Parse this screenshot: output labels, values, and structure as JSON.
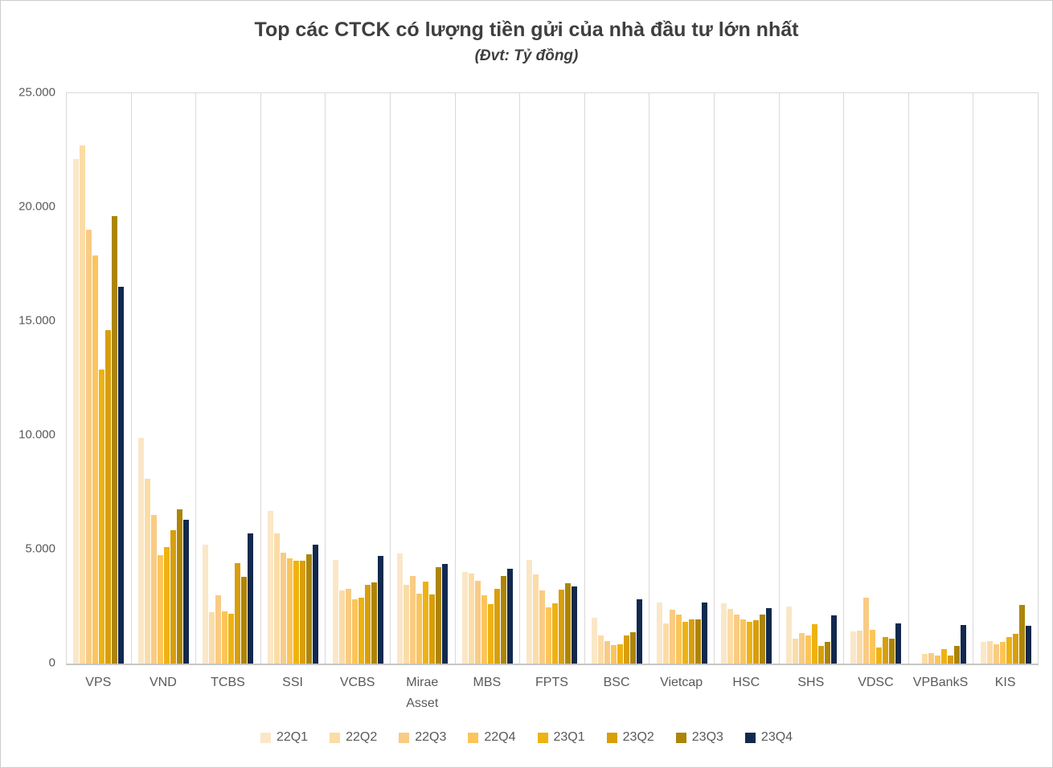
{
  "chart_data": {
    "type": "bar",
    "title": "Top các CTCK có lượng tiền gửi của nhà đầu tư lớn nhất",
    "subtitle": "(Đvt: Tỷ đồng)",
    "unit": "Tỷ đồng",
    "ylim": [
      0,
      25000
    ],
    "yticks": [
      0,
      5000,
      10000,
      15000,
      20000,
      25000
    ],
    "ytick_labels": [
      "0",
      "5.000",
      "10.000",
      "15.000",
      "20.000",
      "25.000"
    ],
    "grid": "vertical category separators, light gray",
    "legend_position": "bottom-center",
    "categories": [
      "VPS",
      "VND",
      "TCBS",
      "SSI",
      "VCBS",
      "Mirae\nAsset",
      "MBS",
      "FPTS",
      "BSC",
      "Vietcap",
      "HSC",
      "SHS",
      "VDSC",
      "VPBankS",
      "KIS"
    ],
    "series": [
      {
        "name": "22Q1",
        "color": "#FAE7C8",
        "values": [
          22100,
          9900,
          5200,
          6700,
          4550,
          4810,
          4010,
          4540,
          2000,
          2690,
          2630,
          2510,
          1410,
          0,
          940
        ]
      },
      {
        "name": "22Q2",
        "color": "#FBDCA6",
        "values": [
          22700,
          8100,
          2250,
          5700,
          3200,
          3460,
          3960,
          3920,
          1220,
          1750,
          2390,
          1080,
          1430,
          440,
          1000
        ]
      },
      {
        "name": "22Q3",
        "color": "#F9CB84",
        "values": [
          19000,
          6500,
          3000,
          4850,
          3280,
          3840,
          3630,
          3190,
          990,
          2370,
          2160,
          1340,
          2900,
          460,
          850
        ]
      },
      {
        "name": "22Q4",
        "color": "#FBC55C",
        "values": [
          17900,
          4750,
          2280,
          4620,
          2810,
          3070,
          2990,
          2470,
          820,
          2140,
          1930,
          1220,
          1490,
          345,
          960
        ]
      },
      {
        "name": "23Q1",
        "color": "#EEB211",
        "values": [
          12900,
          5100,
          2180,
          4510,
          2880,
          3580,
          2610,
          2630,
          850,
          1840,
          1820,
          1730,
          700,
          630,
          1170
        ]
      },
      {
        "name": "23Q2",
        "color": "#D89E0B",
        "values": [
          14600,
          5850,
          4400,
          4510,
          3450,
          3020,
          3270,
          3240,
          1240,
          1940,
          1900,
          790,
          1170,
          350,
          1310
        ]
      },
      {
        "name": "23Q3",
        "color": "#AC8508",
        "values": [
          19600,
          6750,
          3800,
          4780,
          3570,
          4230,
          3840,
          3520,
          1360,
          1940,
          2160,
          960,
          1100,
          760,
          2570
        ]
      },
      {
        "name": "23Q4",
        "color": "#12294E",
        "values": [
          16500,
          6300,
          5700,
          5220,
          4720,
          4370,
          4170,
          3370,
          2810,
          2690,
          2430,
          2110,
          1760,
          1700,
          1670
        ]
      }
    ]
  }
}
